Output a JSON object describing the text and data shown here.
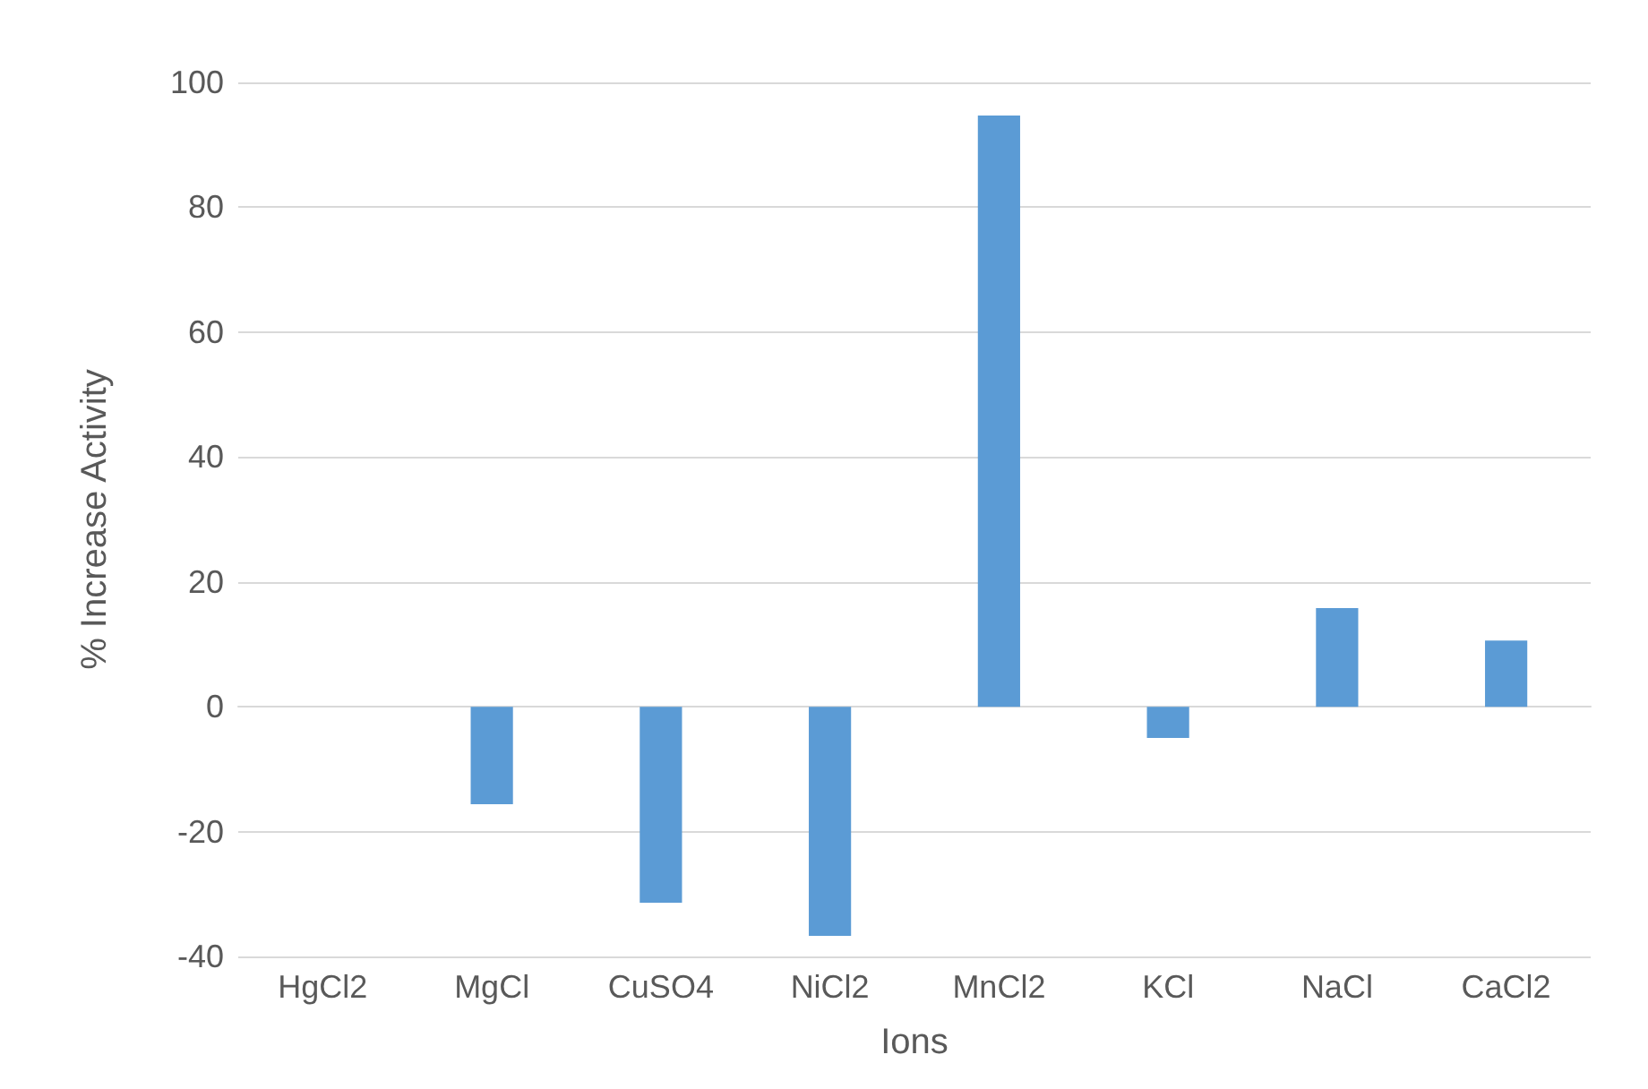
{
  "chart_data": {
    "type": "bar",
    "xlabel": "Ions",
    "ylabel": "% Increase Activity",
    "categories": [
      "HgCl2",
      "MgCl",
      "CuSO4",
      "NiCl2",
      "MnCl2",
      "KCl",
      "NaCl",
      "CaCl2"
    ],
    "values": [
      0,
      -15.6,
      -31.4,
      -36.7,
      94.7,
      -5,
      15.8,
      10.6
    ],
    "color": "#5b9bd5",
    "ylim": [
      -40,
      100
    ],
    "yticks": [
      -40,
      -20,
      0,
      20,
      40,
      60,
      80,
      100
    ],
    "grid": "y"
  }
}
